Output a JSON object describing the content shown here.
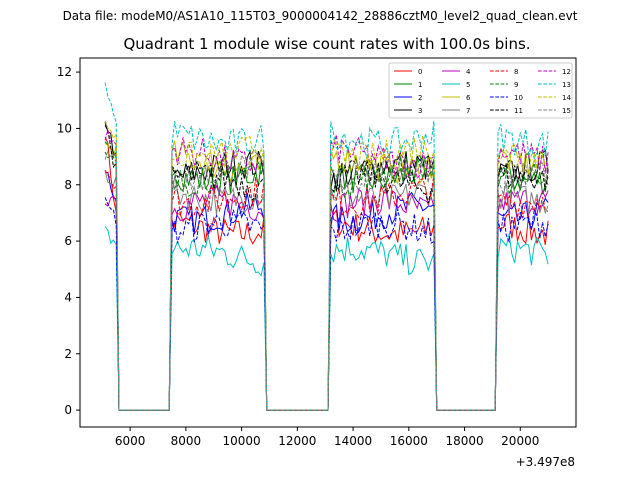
{
  "header": {
    "data_file": "Data file: modeM0/AS1A10_115T03_9000004142_28886cztM0_level2_quad_clean.evt"
  },
  "chart_data": {
    "type": "line",
    "title": "Quadrant 1 module wise count rates with 100.0s bins.",
    "xlabel": "",
    "ylabel": "",
    "x_offset_label": "+3.497e8",
    "xlim": [
      4200,
      22000
    ],
    "ylim": [
      -0.6,
      12.5
    ],
    "x_ticks": [
      {
        "value": 6000,
        "label": "6000"
      },
      {
        "value": 8000,
        "label": "8000"
      },
      {
        "value": 10000,
        "label": "10000"
      },
      {
        "value": 12000,
        "label": "12000"
      },
      {
        "value": 14000,
        "label": "14000"
      },
      {
        "value": 16000,
        "label": "16000"
      },
      {
        "value": 18000,
        "label": "18000"
      },
      {
        "value": 20000,
        "label": "20000"
      }
    ],
    "y_ticks": [
      {
        "value": 0,
        "label": "0"
      },
      {
        "value": 2,
        "label": "2"
      },
      {
        "value": 4,
        "label": "4"
      },
      {
        "value": 6,
        "label": "6"
      },
      {
        "value": 8,
        "label": "8"
      },
      {
        "value": 10,
        "label": "10"
      },
      {
        "value": 12,
        "label": "12"
      }
    ],
    "grid": false,
    "legend_position": "top-right",
    "segments": [
      {
        "start": 5100,
        "end": 5500
      },
      {
        "start": 7500,
        "end": 10800
      },
      {
        "start": 13200,
        "end": 16900
      },
      {
        "start": 19200,
        "end": 21000
      }
    ],
    "gap_level": 0.0,
    "series": [
      {
        "name": "0",
        "color": "#ff0000",
        "dash": "solid",
        "base": 6.5,
        "start_peak": 10.0
      },
      {
        "name": "1",
        "color": "#008000",
        "dash": "solid",
        "base": 8.4,
        "start_peak": 9.3
      },
      {
        "name": "2",
        "color": "#0000ff",
        "dash": "solid",
        "base": 7.0,
        "start_peak": 8.6
      },
      {
        "name": "3",
        "color": "#000000",
        "dash": "solid",
        "base": 8.5,
        "start_peak": 10.4
      },
      {
        "name": "4",
        "color": "#bf00bf",
        "dash": "solid",
        "base": 7.2,
        "start_peak": 7.5
      },
      {
        "name": "5",
        "color": "#00bfbf",
        "dash": "solid",
        "base": 5.5,
        "start_peak": 6.3
      },
      {
        "name": "6",
        "color": "#bfbf00",
        "dash": "solid",
        "base": 8.8,
        "start_peak": 9.4
      },
      {
        "name": "7",
        "color": "#808080",
        "dash": "solid",
        "base": 7.7,
        "start_peak": 8.4
      },
      {
        "name": "8",
        "color": "#ff0000",
        "dash": "dashed",
        "base": 7.6,
        "start_peak": 8.6
      },
      {
        "name": "9",
        "color": "#008000",
        "dash": "dashed",
        "base": 8.3,
        "start_peak": 9.0
      },
      {
        "name": "10",
        "color": "#0000ff",
        "dash": "dashed",
        "base": 6.4,
        "start_peak": 7.3
      },
      {
        "name": "11",
        "color": "#000000",
        "dash": "dashed",
        "base": 8.1,
        "start_peak": 10.2
      },
      {
        "name": "12",
        "color": "#bf00bf",
        "dash": "dashed",
        "base": 9.0,
        "start_peak": 9.8
      },
      {
        "name": "13",
        "color": "#00bfbf",
        "dash": "dashed",
        "base": 9.7,
        "start_peak": 11.7
      },
      {
        "name": "14",
        "color": "#bfbf00",
        "dash": "dashed",
        "base": 9.2,
        "start_peak": 10.3
      },
      {
        "name": "15",
        "color": "#808080",
        "dash": "dashed",
        "base": 8.4,
        "start_peak": 9.1
      }
    ]
  }
}
